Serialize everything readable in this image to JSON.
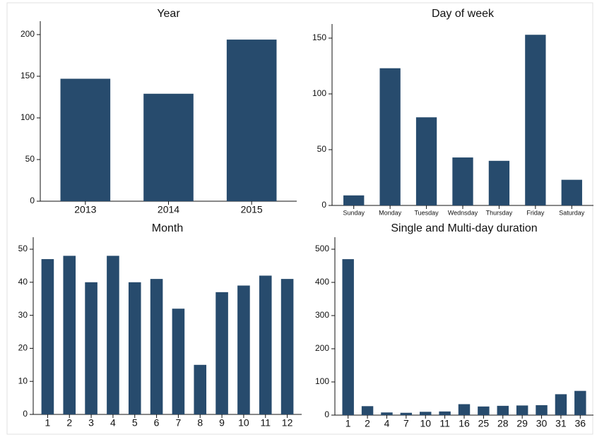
{
  "chart_data": [
    {
      "type": "bar",
      "title": "Year",
      "categories": [
        "2013",
        "2014",
        "2015"
      ],
      "values": [
        147,
        129,
        194
      ],
      "color": "#274b6d",
      "ylim": [
        0,
        200
      ],
      "yticks": [
        0,
        50,
        100,
        150,
        200
      ]
    },
    {
      "type": "bar",
      "title": "Day of week",
      "categories": [
        "Sunday",
        "Monday",
        "Tuesday",
        "Wednsday",
        "Thursday",
        "Friday",
        "Saturday"
      ],
      "values": [
        9,
        123,
        79,
        43,
        40,
        153,
        23
      ],
      "color": "#274b6d",
      "ylim": [
        0,
        150
      ],
      "yticks": [
        0,
        50,
        100,
        150
      ]
    },
    {
      "type": "bar",
      "title": "Month",
      "categories": [
        "1",
        "2",
        "3",
        "4",
        "5",
        "6",
        "7",
        "8",
        "9",
        "10",
        "11",
        "12"
      ],
      "values": [
        47,
        48,
        40,
        48,
        40,
        41,
        32,
        15,
        37,
        39,
        42,
        41
      ],
      "color": "#274b6d",
      "ylim": [
        0,
        50
      ],
      "yticks": [
        0,
        10,
        20,
        30,
        40,
        50
      ]
    },
    {
      "type": "bar",
      "title": "Single and Multi-day duration",
      "categories": [
        "1",
        "2",
        "4",
        "7",
        "10",
        "11",
        "16",
        "25",
        "28",
        "29",
        "30",
        "31",
        "36"
      ],
      "values": [
        470,
        27,
        8,
        7,
        10,
        11,
        33,
        26,
        28,
        29,
        30,
        63,
        73
      ],
      "color": "#274b6d",
      "ylim": [
        0,
        500
      ],
      "yticks": [
        0,
        100,
        200,
        300,
        400,
        500
      ]
    }
  ]
}
